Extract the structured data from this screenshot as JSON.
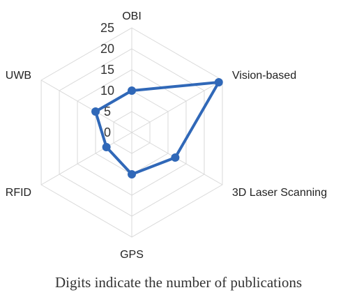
{
  "chart_data": {
    "type": "radar",
    "categories": [
      "OBI",
      "Vision-based",
      "3D Laser Scanning",
      "GPS",
      "RFID",
      "UWB"
    ],
    "values": [
      10,
      24,
      12,
      10,
      7,
      10
    ],
    "rlim": [
      0,
      25
    ],
    "ticks": [
      "0",
      "5",
      "10",
      "15",
      "20",
      "25"
    ],
    "grid": true,
    "series_color": "#3068b8",
    "grid_color": "#d9d9d9"
  },
  "caption": "Digits indicate the number of publications"
}
